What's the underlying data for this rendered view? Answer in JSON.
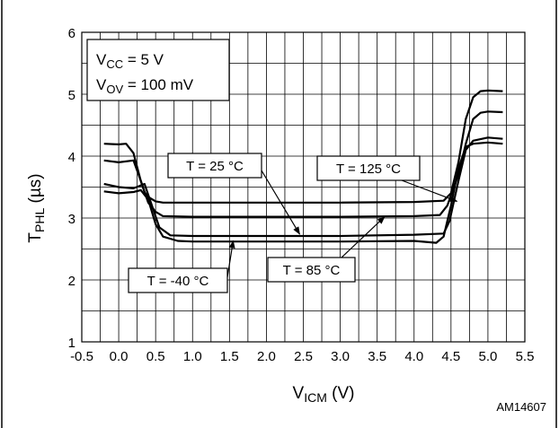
{
  "chart_data": {
    "type": "line",
    "title": "",
    "xlabel": {
      "main": "V",
      "sub": "ICM",
      "unit": " (V)"
    },
    "ylabel": {
      "main": "T",
      "sub": "PHL",
      "unit": " (µs)"
    },
    "xlim": [
      -0.5,
      5.5
    ],
    "ylim": [
      1,
      6
    ],
    "x_ticks": [
      "-0.5",
      "0.0",
      "0.5",
      "1.0",
      "1.5",
      "2.0",
      "2.5",
      "3.0",
      "3.5",
      "4.0",
      "4.5",
      "5.0",
      "5.5"
    ],
    "y_ticks": [
      "1",
      "2",
      "3",
      "4",
      "5",
      "6"
    ],
    "grid": true,
    "conditions": [
      {
        "main": "V",
        "sub": "CC",
        "value": " = 5 V"
      },
      {
        "main": "V",
        "sub": "OV",
        "value": " = 100 mV"
      }
    ],
    "series": [
      {
        "name": "T = 125 °C",
        "x": [
          -0.2,
          0.0,
          0.1,
          0.2,
          0.3,
          0.35,
          0.4,
          0.5,
          0.6,
          1.0,
          2.0,
          3.0,
          4.0,
          4.4,
          4.5,
          4.6,
          4.7,
          4.8,
          4.9,
          5.0,
          5.2
        ],
        "y": [
          4.2,
          4.19,
          4.2,
          4.05,
          3.6,
          3.42,
          3.34,
          3.27,
          3.25,
          3.25,
          3.25,
          3.25,
          3.26,
          3.28,
          3.4,
          3.9,
          4.6,
          4.95,
          5.05,
          5.06,
          5.05
        ]
      },
      {
        "name": "T = 25 °C",
        "x": [
          -0.2,
          0.0,
          0.2,
          0.3,
          0.4,
          0.5,
          0.6,
          1.0,
          2.0,
          3.0,
          4.0,
          4.35,
          4.45,
          4.6,
          4.7,
          4.8,
          4.9,
          5.0,
          5.2
        ],
        "y": [
          3.93,
          3.9,
          3.93,
          3.6,
          3.25,
          3.1,
          3.03,
          3.02,
          3.02,
          3.02,
          3.03,
          3.05,
          3.2,
          3.7,
          4.2,
          4.6,
          4.7,
          4.72,
          4.71
        ]
      },
      {
        "name": "T = 85 °C",
        "x": [
          -0.2,
          0.0,
          0.2,
          0.35,
          0.45,
          0.55,
          0.7,
          1.0,
          2.0,
          3.0,
          4.0,
          4.4,
          4.48,
          4.6,
          4.7,
          4.8,
          5.0,
          5.2
        ],
        "y": [
          3.55,
          3.5,
          3.48,
          3.55,
          3.2,
          2.85,
          2.72,
          2.71,
          2.71,
          2.71,
          2.73,
          2.75,
          2.95,
          3.6,
          4.1,
          4.25,
          4.3,
          4.28
        ]
      },
      {
        "name": "T = -40 °C",
        "x": [
          -0.2,
          0.0,
          0.2,
          0.3,
          0.4,
          0.5,
          0.6,
          0.8,
          1.0,
          2.0,
          3.0,
          4.0,
          4.3,
          4.4,
          4.5,
          4.6,
          4.7,
          4.8,
          5.0,
          5.2
        ],
        "y": [
          3.43,
          3.4,
          3.42,
          3.45,
          3.3,
          2.9,
          2.7,
          2.63,
          2.62,
          2.62,
          2.62,
          2.63,
          2.6,
          2.7,
          3.2,
          3.8,
          4.15,
          4.2,
          4.22,
          4.2
        ]
      }
    ],
    "annotations": [
      {
        "text": "T = 25 °C",
        "target_x": 2.45,
        "target_y": 2.74
      },
      {
        "text": "T = 125 °C",
        "target_x": 4.58,
        "target_y": 3.27
      },
      {
        "text": "T = -40 °C",
        "target_x": 1.55,
        "target_y": 2.63
      },
      {
        "text": "T = 85 °C",
        "target_x": 3.6,
        "target_y": 3.02
      }
    ],
    "figure_id": "AM14607"
  }
}
